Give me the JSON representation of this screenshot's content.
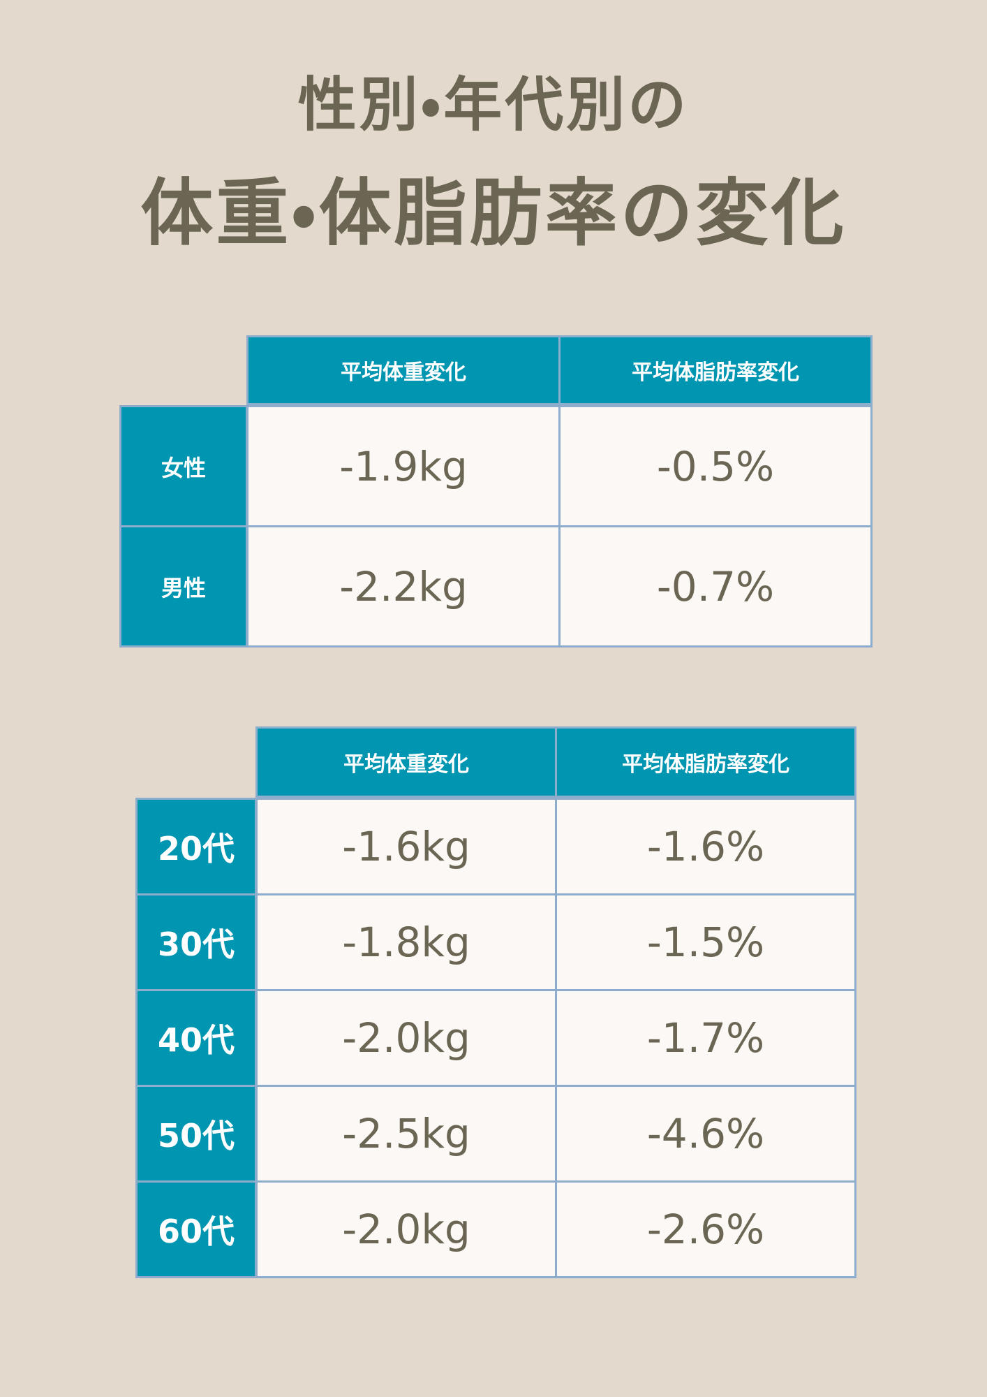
{
  "title": {
    "line1": "性別・年代別の",
    "line2": "体重・体脂肪率の変化"
  },
  "tables": [
    {
      "headers": [
        "平均体重変化",
        "平均体脂肪率変化"
      ],
      "rows": [
        {
          "label": "女性",
          "cells": [
            "-1.9kg",
            "-0.5%"
          ]
        },
        {
          "label": "男性",
          "cells": [
            "-2.2kg",
            "-0.7%"
          ]
        }
      ]
    },
    {
      "headers": [
        "平均体重変化",
        "平均体脂肪率変化"
      ],
      "rows": [
        {
          "label": "20代",
          "cells": [
            "-1.6kg",
            "-1.6%"
          ]
        },
        {
          "label": "30代",
          "cells": [
            "-1.8kg",
            "-1.5%"
          ]
        },
        {
          "label": "40代",
          "cells": [
            "-2.0kg",
            "-1.7%"
          ]
        },
        {
          "label": "50代",
          "cells": [
            "-2.5kg",
            "-4.6%"
          ]
        },
        {
          "label": "60代",
          "cells": [
            "-2.0kg",
            "-2.6%"
          ]
        }
      ]
    }
  ]
}
